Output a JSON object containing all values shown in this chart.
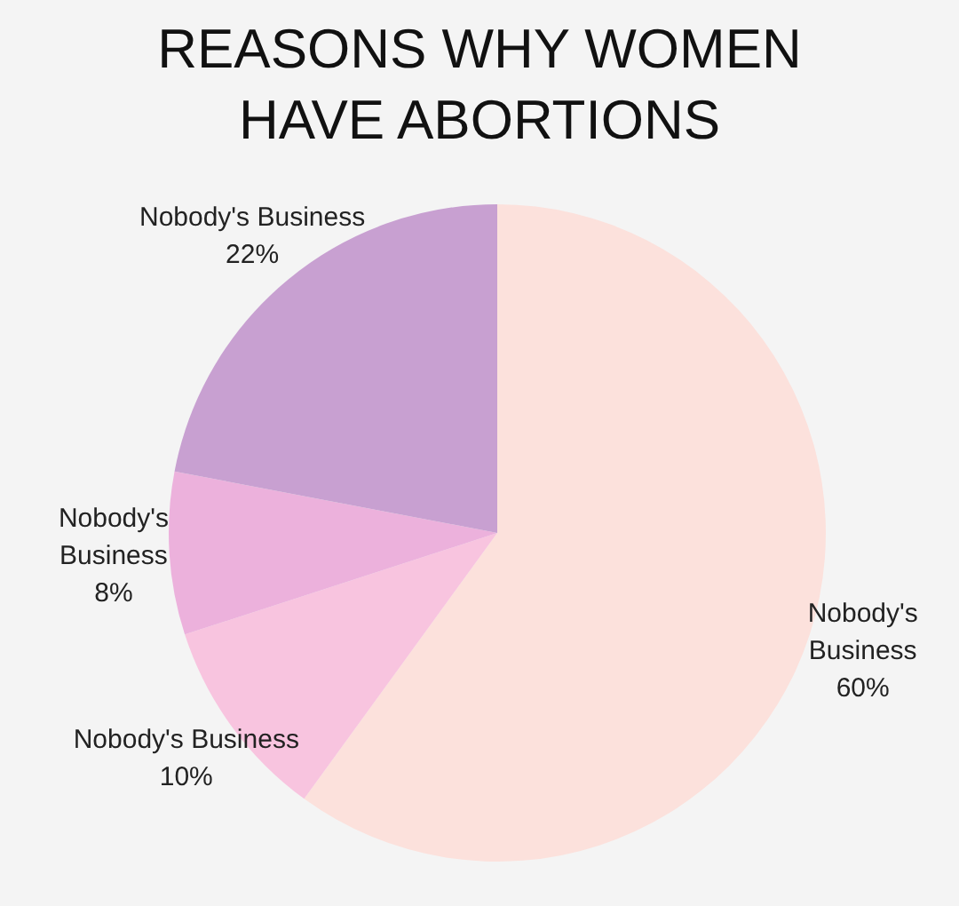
{
  "chart_data": {
    "type": "pie",
    "title": "REASONS WHY WOMEN HAVE ABORTIONS",
    "categories": [
      "Nobody's Business",
      "Nobody's Business",
      "Nobody's Business",
      "Nobody's Business"
    ],
    "values": [
      60,
      10,
      8,
      22
    ],
    "colors": [
      "#fce1dc",
      "#f8c4df",
      "#ecb1dc",
      "#c8a0d1"
    ],
    "value_labels": [
      "60%",
      "10%",
      "8%",
      "22%"
    ],
    "legend": false
  }
}
